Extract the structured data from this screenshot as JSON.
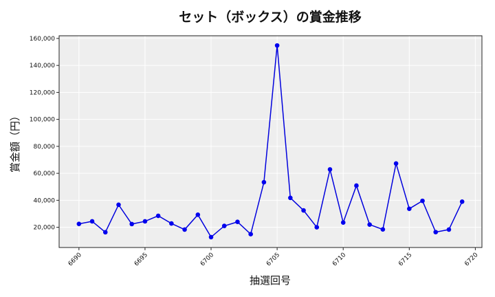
{
  "chart_data": {
    "type": "line",
    "title": "セット（ボックス）の賞金推移",
    "xlabel": "抽選回号",
    "ylabel": "賞金額（円）",
    "xlim": [
      6688.5,
      6720.5
    ],
    "ylim": [
      5000,
      162000
    ],
    "x_ticks": [
      6690,
      6695,
      6700,
      6705,
      6710,
      6715,
      6720
    ],
    "y_ticks": [
      20000,
      40000,
      60000,
      80000,
      100000,
      120000,
      140000,
      160000
    ],
    "x_tick_labels": [
      "6690",
      "6695",
      "6700",
      "6705",
      "6710",
      "6715",
      "6720"
    ],
    "y_tick_labels": [
      "20,000",
      "40,000",
      "60,000",
      "80,000",
      "100,000",
      "120,000",
      "140,000",
      "160,000"
    ],
    "grid": true,
    "colors": {
      "line": "#0000dd",
      "marker": "#0000ee",
      "plot_bg": "#eeeeee",
      "grid": "#ffffff"
    },
    "series": [
      {
        "x": [
          6690,
          6691,
          6692,
          6693,
          6694,
          6695,
          6696,
          6697,
          6698,
          6699,
          6700,
          6701,
          6702,
          6703,
          6704,
          6705,
          6706,
          6707,
          6708,
          6709,
          6710,
          6711,
          6712,
          6713,
          6714,
          6715,
          6716,
          6717,
          6718,
          6719
        ],
        "values": [
          22500,
          24400,
          16300,
          36700,
          22400,
          24400,
          28500,
          22800,
          18300,
          29300,
          12700,
          21000,
          24000,
          14900,
          53400,
          154800,
          41800,
          32500,
          20000,
          62900,
          23500,
          50900,
          22000,
          18400,
          67300,
          33700,
          39600,
          16400,
          18300,
          39000
        ]
      }
    ]
  }
}
